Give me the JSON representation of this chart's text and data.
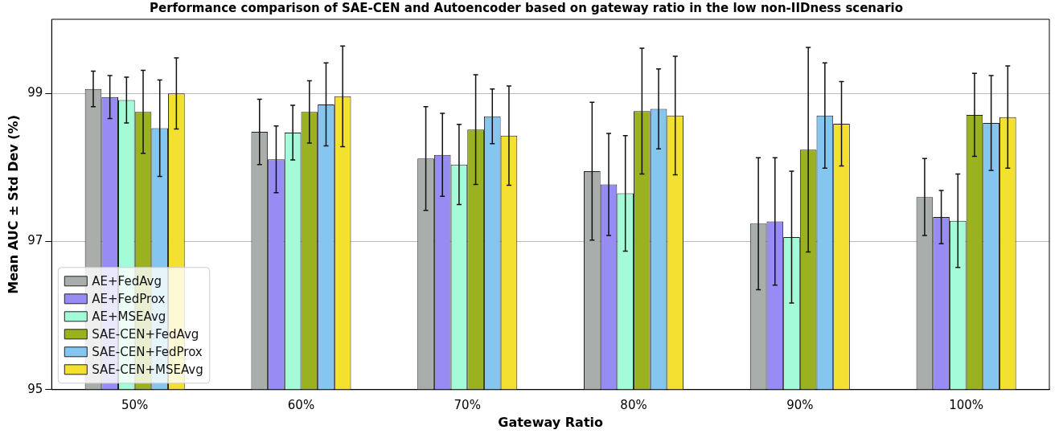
{
  "chart_data": {
    "type": "bar",
    "title": "Performance comparison of SAE-CEN and Autoencoder based on gateway ratio in the low non-IIDness scenario",
    "xlabel": "Gateway Ratio",
    "ylabel": "Mean AUC ± Std Dev (%)",
    "categories": [
      "50%",
      "60%",
      "70%",
      "80%",
      "90%",
      "100%"
    ],
    "series": [
      {
        "name": "AE+FedAvg",
        "color": "#a9aeab",
        "values": [
          99.06,
          98.48,
          98.12,
          97.95,
          97.24,
          97.6
        ],
        "errors": [
          0.24,
          0.44,
          0.7,
          0.93,
          0.89,
          0.52
        ]
      },
      {
        "name": "AE+FedProx",
        "color": "#968cf4",
        "values": [
          98.95,
          98.11,
          98.17,
          97.77,
          97.27,
          97.33
        ],
        "errors": [
          0.29,
          0.45,
          0.56,
          0.69,
          0.86,
          0.36
        ]
      },
      {
        "name": "AE+MSEAvg",
        "color": "#a4fbd8",
        "values": [
          98.91,
          98.47,
          98.04,
          97.65,
          97.06,
          97.28
        ],
        "errors": [
          0.31,
          0.37,
          0.54,
          0.78,
          0.89,
          0.63
        ]
      },
      {
        "name": "SAE-CEN+FedAvg",
        "color": "#9ab120",
        "values": [
          98.75,
          98.75,
          98.51,
          98.76,
          98.24,
          98.71
        ],
        "errors": [
          0.56,
          0.42,
          0.74,
          0.85,
          1.38,
          0.56
        ]
      },
      {
        "name": "SAE-CEN+FedProx",
        "color": "#84c6f0",
        "values": [
          98.53,
          98.85,
          98.69,
          98.79,
          98.7,
          98.6
        ],
        "errors": [
          0.65,
          0.56,
          0.37,
          0.54,
          0.71,
          0.64
        ]
      },
      {
        "name": "SAE-CEN+MSEAvg",
        "color": "#f3e030",
        "values": [
          99.0,
          98.96,
          98.43,
          98.7,
          98.59,
          98.68
        ],
        "errors": [
          0.48,
          0.68,
          0.67,
          0.8,
          0.57,
          0.69
        ]
      }
    ],
    "ylim": [
      95,
      100
    ],
    "yticks": [
      95,
      97,
      99
    ],
    "grid": "y",
    "legend": "bottom left"
  }
}
